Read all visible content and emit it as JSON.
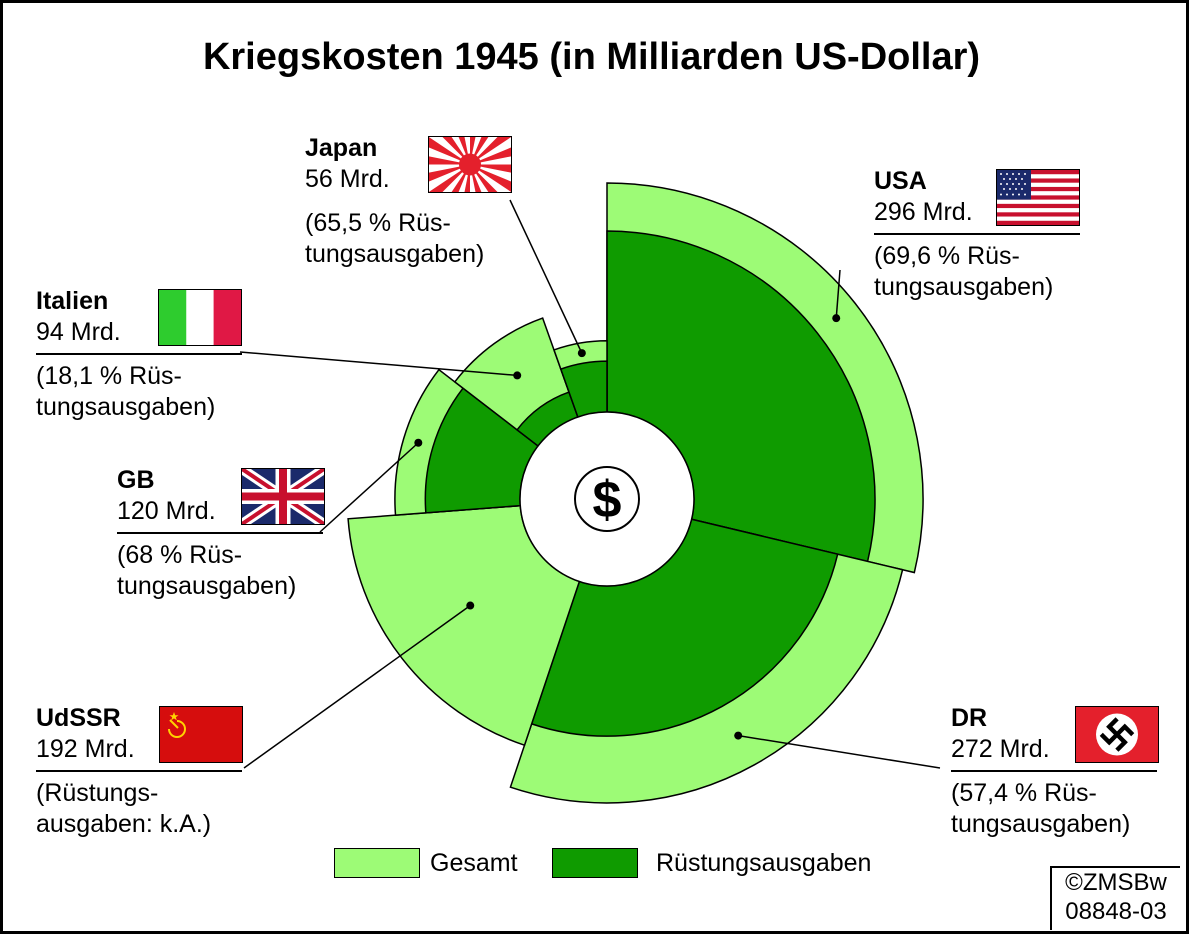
{
  "title": "Kriegskosten 1945 (in Milliarden US-Dollar)",
  "center_symbol": "$",
  "colors": {
    "gesamt": "#9dfb76",
    "ruestung": "#0f9b00",
    "outline": "#000000"
  },
  "legend": {
    "gesamt_label": "Gesamt",
    "ruestung_label": "Rüstungsausgaben"
  },
  "copyright": {
    "line1": "©ZMSBw",
    "line2": "08848-03"
  },
  "chart_data": {
    "type": "polar-area",
    "title": "Kriegskosten 1945 (in Milliarden US-Dollar)",
    "unit": "Milliarden US-Dollar",
    "series": [
      {
        "name": "Gesamt",
        "key": "total"
      },
      {
        "name": "Rüstungsausgaben",
        "key": "ruestung_pct"
      }
    ],
    "countries": [
      {
        "name": "USA",
        "total": 296,
        "value_label": "296 Mrd.",
        "ruestung_pct": 69.6,
        "note": "(69,6 % Rüs-\ntungsausgaben)",
        "flag": "usa-flag-icon"
      },
      {
        "name": "DR",
        "total": 272,
        "value_label": "272 Mrd.",
        "ruestung_pct": 57.4,
        "note": "(57,4 % Rüs-\ntungsausgaben)",
        "flag": "reich-flag-icon"
      },
      {
        "name": "UdSSR",
        "total": 192,
        "value_label": "192 Mrd.",
        "ruestung_pct": null,
        "note": "(Rüstungs-\nausgaben: k.A.)",
        "flag": "ussr-flag-icon"
      },
      {
        "name": "GB",
        "total": 120,
        "value_label": "120 Mrd.",
        "ruestung_pct": 68,
        "note": "(68 % Rüs-\ntungsausgaben)",
        "flag": "uk-flag-icon"
      },
      {
        "name": "Italien",
        "total": 94,
        "value_label": "94 Mrd.",
        "ruestung_pct": 18.1,
        "note": "(18,1 % Rüs-\ntungsausgaben)",
        "flag": "italy-flag-icon"
      },
      {
        "name": "Japan",
        "total": 56,
        "value_label": "56 Mrd.",
        "ruestung_pct": 65.5,
        "note": "(65,5 % Rüs-\ntungsausgaben)",
        "flag": "japan-flag-icon"
      }
    ]
  }
}
